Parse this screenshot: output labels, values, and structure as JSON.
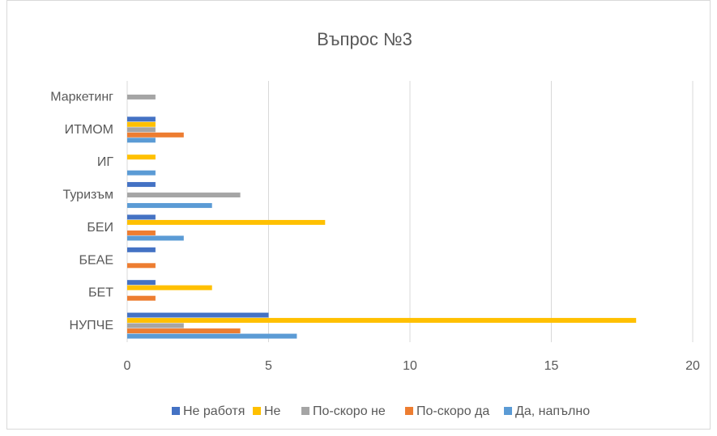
{
  "chart_data": {
    "type": "hbar",
    "title": "Въпрос №3",
    "categories": [
      "НУПЧЕ",
      "БЕТ",
      "БЕАЕ",
      "БЕИ",
      "Туризъм",
      "ИГ",
      "ИТМОМ",
      "Маркетинг"
    ],
    "series": [
      {
        "name": "Не работя",
        "color": "#4472c4",
        "values": [
          5,
          1,
          1,
          1,
          1,
          0,
          1,
          0
        ]
      },
      {
        "name": "Не",
        "color": "#ffc000",
        "values": [
          18,
          3,
          0,
          7,
          0,
          1,
          1,
          0
        ]
      },
      {
        "name": "По-скоро не",
        "color": "#a5a5a5",
        "values": [
          2,
          0,
          0,
          0,
          4,
          0,
          1,
          1
        ]
      },
      {
        "name": "По-скоро да",
        "color": "#ed7d31",
        "values": [
          4,
          1,
          1,
          1,
          0,
          0,
          2,
          0
        ]
      },
      {
        "name": "Да, напълно",
        "color": "#5b9bd5",
        "values": [
          6,
          0,
          0,
          2,
          3,
          1,
          1,
          0
        ]
      }
    ],
    "xlim": [
      0,
      20
    ],
    "xticks": [
      0,
      5,
      10,
      15,
      20
    ],
    "grid": true,
    "legend": "bottom"
  }
}
